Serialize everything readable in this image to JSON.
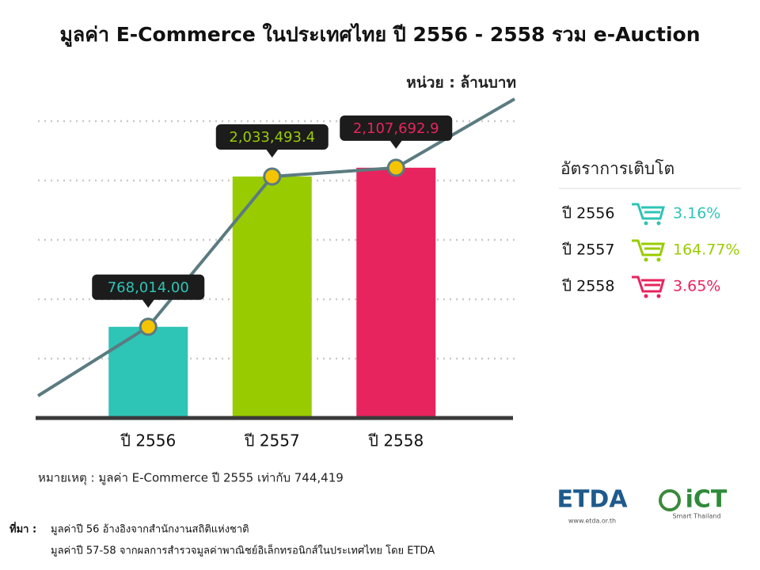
{
  "chart_data": {
    "type": "bar",
    "title": "มูลค่า E-Commerce ในประเทศไทย ปี 2556 - 2558 รวม e-Auction",
    "unit": "หน่วย : ล้านบาท",
    "categories": [
      "ปี 2556",
      "ปี 2557",
      "ปี 2558"
    ],
    "values": [
      768014.0,
      2033493.4,
      2107692.9
    ],
    "value_labels": [
      "768,014.00",
      "2,033,493.4",
      "2,107,692.9"
    ],
    "colors": [
      "#2ec4b6",
      "#99cc00",
      "#e8245e"
    ],
    "ylim": [
      0,
      2500000
    ],
    "yticks": [
      0,
      500000,
      1000000,
      1500000,
      2000000,
      2500000
    ],
    "grid": true
  },
  "growth_panel": {
    "title": "อัตราการเติบโต",
    "rows": [
      {
        "label": "ปี 2556",
        "rate": "3.16%"
      },
      {
        "label": "ปี 2557",
        "rate": "164.77%"
      },
      {
        "label": "ปี 2558",
        "rate": "3.65%"
      }
    ]
  },
  "note": "หมายเหตุ : มูลค่า E-Commerce ปี 2555 เท่ากับ 744,419",
  "source": {
    "label": "ที่มา :",
    "lines": [
      "มูลค่าปี 56 อ้างอิงจากสำนักงานสถิติแห่งชาติ",
      "มูลค่าปี 57-58 จากผลการสำรวจมูลค่าพาณิชย์อิเล็กทรอนิกส์ในประเทศไทย  โดย ETDA"
    ]
  },
  "logos": {
    "etda": "ETDA",
    "etda_url": "www.etda.or.th",
    "ict": "iCT",
    "ict_tagline": "Smart Thailand"
  }
}
